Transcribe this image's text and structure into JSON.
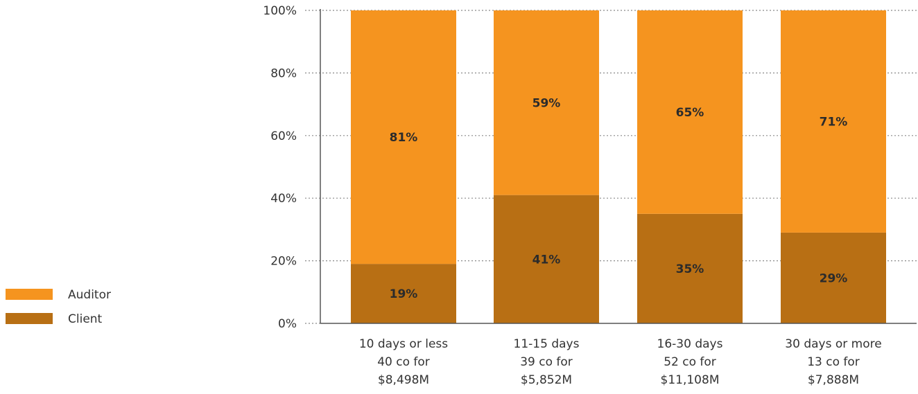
{
  "chart_data": {
    "type": "bar",
    "stacked": true,
    "percent_scale": true,
    "categories": [
      [
        "10 days or less",
        "40 co for",
        "$8,498M"
      ],
      [
        "11-15 days",
        "39 co for",
        "$5,852M"
      ],
      [
        "16-30 days",
        "52 co for",
        "$11,108M"
      ],
      [
        "30 days or more",
        "13 co for",
        "$7,888M"
      ]
    ],
    "series": [
      {
        "name": "Client",
        "values": [
          19,
          41,
          35,
          29
        ],
        "labels": [
          "19%",
          "41%",
          "35%",
          "29%"
        ],
        "color": "#b86f14"
      },
      {
        "name": "Auditor",
        "values": [
          81,
          59,
          65,
          71
        ],
        "labels": [
          "81%",
          "59%",
          "65%",
          "71%"
        ],
        "color": "#f5941f"
      }
    ],
    "ylim": [
      0,
      100
    ],
    "yticks": [
      "0%",
      "20%",
      "40%",
      "60%",
      "80%",
      "100%"
    ],
    "grid": "dotted horizontal",
    "legend": {
      "position": "left",
      "order": [
        "Auditor",
        "Client"
      ]
    }
  }
}
